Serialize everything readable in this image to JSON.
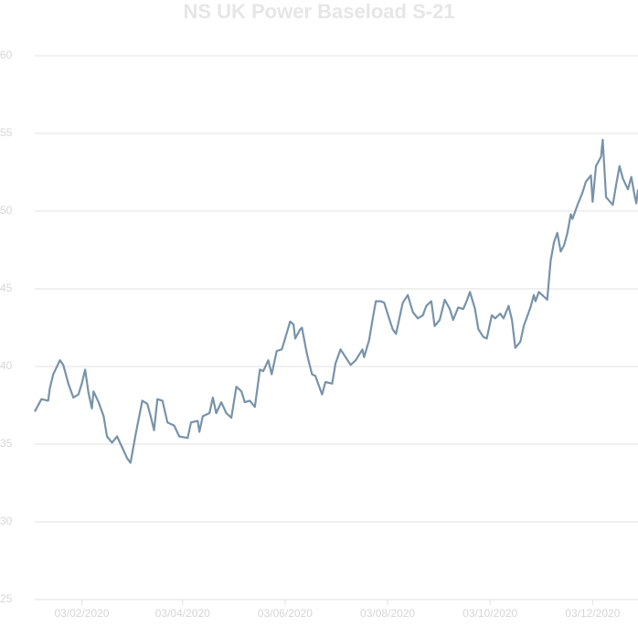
{
  "chart_data": {
    "type": "line",
    "title": "NS UK Power Baseload S-21",
    "color": "#7793aa",
    "grid": true,
    "x": [
      "2020-01-06",
      "2020-01-10",
      "2020-01-14",
      "2020-01-15",
      "2020-01-17",
      "2020-01-21",
      "2020-01-23",
      "2020-01-26",
      "2020-01-29",
      "2020-02-01",
      "2020-02-03",
      "2020-02-05",
      "2020-02-07",
      "2020-02-09",
      "2020-02-10",
      "2020-02-13",
      "2020-02-16",
      "2020-02-18",
      "2020-02-21",
      "2020-02-24",
      "2020-02-27",
      "2020-03-01",
      "2020-03-03",
      "2020-03-06",
      "2020-03-10",
      "2020-03-13",
      "2020-03-15",
      "2020-03-17",
      "2020-03-19",
      "2020-03-22",
      "2020-03-25",
      "2020-03-29",
      "2020-04-01",
      "2020-04-06",
      "2020-04-08",
      "2020-04-12",
      "2020-04-13",
      "2020-04-15",
      "2020-04-19",
      "2020-04-21",
      "2020-04-23",
      "2020-04-26",
      "2020-04-29",
      "2020-05-02",
      "2020-05-05",
      "2020-05-08",
      "2020-05-10",
      "2020-05-13",
      "2020-05-16",
      "2020-05-19",
      "2020-05-21",
      "2020-05-24",
      "2020-05-26",
      "2020-05-29",
      "2020-06-01",
      "2020-06-03",
      "2020-06-06",
      "2020-06-08",
      "2020-06-09",
      "2020-06-12",
      "2020-06-13",
      "2020-06-16",
      "2020-06-19",
      "2020-06-21",
      "2020-06-25",
      "2020-06-27",
      "2020-07-01",
      "2020-07-03",
      "2020-07-06",
      "2020-07-09",
      "2020-07-12",
      "2020-07-15",
      "2020-07-19",
      "2020-07-20",
      "2020-07-23",
      "2020-07-25",
      "2020-07-27",
      "2020-07-30",
      "2020-08-01",
      "2020-08-03",
      "2020-08-06",
      "2020-08-08",
      "2020-08-10",
      "2020-08-12",
      "2020-08-15",
      "2020-08-18",
      "2020-08-21",
      "2020-08-24",
      "2020-08-26",
      "2020-08-29",
      "2020-08-31",
      "2020-09-03",
      "2020-09-06",
      "2020-09-09",
      "2020-09-11",
      "2020-09-14",
      "2020-09-17",
      "2020-09-19",
      "2020-09-21",
      "2020-09-24",
      "2020-09-26",
      "2020-09-29",
      "2020-10-01",
      "2020-10-04",
      "2020-10-06",
      "2020-10-09",
      "2020-10-11",
      "2020-10-14",
      "2020-10-16",
      "2020-10-18",
      "2020-10-21",
      "2020-10-23",
      "2020-10-27",
      "2020-10-29",
      "2020-10-30",
      "2020-11-01",
      "2020-11-03",
      "2020-11-06",
      "2020-11-08",
      "2020-11-10",
      "2020-11-12",
      "2020-11-14",
      "2020-11-16",
      "2020-11-18",
      "2020-11-20",
      "2020-11-21",
      "2020-11-24",
      "2020-11-27",
      "2020-11-29",
      "2020-12-02",
      "2020-12-03",
      "2020-12-05",
      "2020-12-08",
      "2020-12-09",
      "2020-12-11",
      "2020-12-15",
      "2020-12-17",
      "2020-12-19",
      "2020-12-21",
      "2020-12-24",
      "2020-12-26",
      "2020-12-28",
      "2020-12-29",
      "2020-12-30"
    ],
    "values": [
      37.1,
      37.9,
      37.8,
      38.6,
      39.5,
      40.4,
      40.1,
      38.9,
      38.0,
      38.2,
      38.9,
      39.8,
      38.3,
      37.3,
      38.4,
      37.7,
      36.8,
      35.5,
      35.1,
      35.5,
      34.8,
      34.1,
      33.8,
      35.6,
      37.8,
      37.6,
      36.8,
      35.9,
      37.9,
      37.8,
      36.4,
      36.2,
      35.5,
      35.4,
      36.4,
      36.5,
      35.8,
      36.8,
      37.0,
      38.0,
      37.0,
      37.7,
      37.0,
      36.7,
      38.7,
      38.4,
      37.7,
      37.8,
      37.4,
      39.8,
      39.7,
      40.4,
      39.5,
      41.0,
      41.1,
      41.8,
      42.9,
      42.7,
      41.8,
      42.4,
      42.5,
      40.8,
      39.5,
      39.4,
      38.2,
      39.0,
      38.9,
      40.2,
      41.1,
      40.6,
      40.1,
      40.4,
      41.1,
      40.6,
      41.7,
      43.0,
      44.2,
      44.2,
      44.1,
      43.4,
      42.4,
      42.1,
      43.1,
      44.1,
      44.6,
      43.5,
      43.1,
      43.3,
      43.9,
      44.2,
      42.6,
      43.0,
      44.3,
      43.7,
      43.0,
      43.8,
      43.7,
      44.2,
      44.8,
      43.7,
      42.4,
      41.9,
      41.8,
      43.3,
      43.1,
      43.4,
      43.1,
      43.9,
      43.0,
      41.2,
      41.6,
      42.6,
      43.8,
      44.6,
      44.2,
      44.8,
      44.6,
      44.3,
      46.8,
      48.0,
      48.6,
      47.4,
      47.8,
      48.6,
      49.8,
      49.5,
      50.4,
      51.2,
      51.9,
      52.3,
      50.6,
      52.9,
      53.5,
      54.6,
      50.9,
      50.4,
      51.7,
      52.9,
      52.1,
      51.4,
      52.2,
      51.0,
      50.5,
      51.4
    ],
    "xlim": [
      "2020-01-06",
      "2020-12-30"
    ],
    "xticks": [
      {
        "value": "2020-02-03",
        "label": "03/02/2020"
      },
      {
        "value": "2020-04-03",
        "label": "03/04/2020"
      },
      {
        "value": "2020-06-03",
        "label": "03/06/2020"
      },
      {
        "value": "2020-08-03",
        "label": "03/08/2020"
      },
      {
        "value": "2020-10-03",
        "label": "03/10/2020"
      },
      {
        "value": "2020-12-03",
        "label": "03/12/2020"
      }
    ],
    "ylim": [
      25,
      60
    ],
    "yticks": [
      25,
      30,
      35,
      40,
      45,
      50,
      55,
      60
    ]
  }
}
